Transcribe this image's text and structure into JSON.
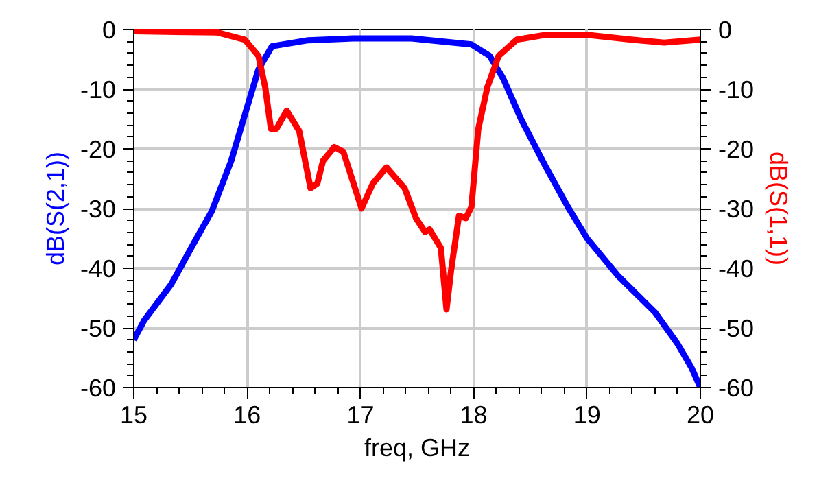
{
  "chart_data": {
    "type": "line",
    "xlabel": "freq, GHz",
    "ylabel": "dB(S(2,1))",
    "y2label": "dB(S(1,1))",
    "xlim": [
      15,
      20
    ],
    "xticks": [
      15,
      16,
      17,
      18,
      19,
      20
    ],
    "ylim": [
      -60,
      0
    ],
    "yticks": [
      -60,
      -50,
      -40,
      -30,
      -20,
      -10,
      0
    ],
    "y2lim": [
      -60,
      0
    ],
    "y2ticks": [
      -60,
      -50,
      -40,
      -30,
      -20,
      -10,
      0
    ],
    "grid": true,
    "marker": "none",
    "line_style": "solid",
    "series": [
      {
        "color": "#0000ff",
        "axis": "y",
        "x": [
          15,
          15.09,
          15.33,
          15.53,
          15.69,
          15.86,
          15.98,
          16.1,
          16.22,
          16.54,
          16.94,
          17.45,
          17.98,
          18.14,
          18.26,
          18.42,
          18.63,
          18.83,
          19,
          19.27,
          19.6,
          19.8,
          19.92,
          20
        ],
        "values": [
          -52,
          -48.8,
          -42.7,
          -35.8,
          -30.4,
          -22,
          -14.3,
          -6.7,
          -2.8,
          -1.8,
          -1.5,
          -1.5,
          -2.5,
          -4.4,
          -8.2,
          -15.1,
          -22.8,
          -29.7,
          -35,
          -41.2,
          -47.4,
          -52.7,
          -56.6,
          -60
        ]
      },
      {
        "color": "#ff0000",
        "axis": "y2",
        "x": [
          15,
          15.74,
          15.98,
          16.1,
          16.16,
          16.21,
          16.26,
          16.35,
          16.46,
          16.56,
          16.62,
          16.67,
          16.77,
          16.85,
          17.01,
          17.11,
          17.23,
          17.39,
          17.49,
          17.57,
          17.61,
          17.71,
          17.76,
          17.8,
          17.87,
          17.93,
          17.98,
          18.04,
          18.12,
          18.22,
          18.38,
          18.63,
          19,
          19.39,
          19.68,
          20
        ],
        "values": [
          -0.3,
          -0.5,
          -1.7,
          -4.4,
          -9.7,
          -16.6,
          -16.6,
          -13.6,
          -17,
          -26.6,
          -25.8,
          -22,
          -19.7,
          -20.5,
          -30,
          -25.8,
          -23.1,
          -26.6,
          -31.6,
          -33.9,
          -33.5,
          -36.6,
          -46.9,
          -40.4,
          -31.2,
          -31.6,
          -29.7,
          -16.7,
          -9.7,
          -4.4,
          -1.7,
          -0.9,
          -0.9,
          -1.7,
          -2.2,
          -1.7
        ]
      }
    ]
  }
}
